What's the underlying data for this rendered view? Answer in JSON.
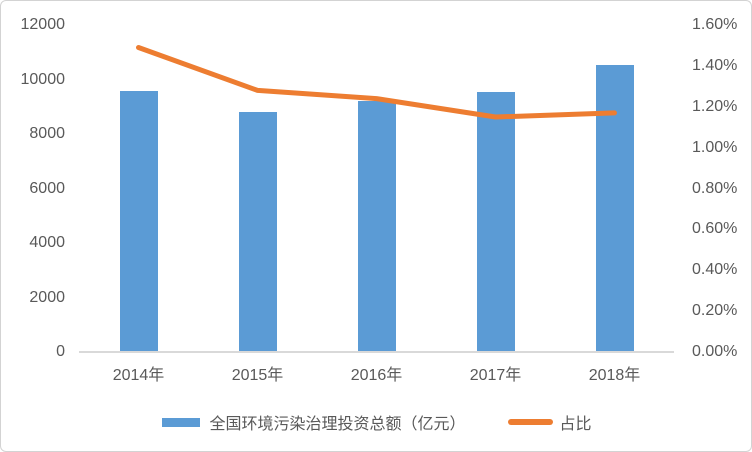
{
  "chart_data": {
    "type": "bar",
    "combo": "bar+line",
    "title": "",
    "categories": [
      "2014年",
      "2015年",
      "2016年",
      "2017年",
      "2018年"
    ],
    "series": [
      {
        "name": "全国环境污染治理投资总额（亿元）",
        "type": "bar",
        "axis": "left",
        "color": "#5b9bd5",
        "values": [
          9575.5,
          8806.3,
          9219.8,
          9539.0,
          10522.9
        ]
      },
      {
        "name": "占比",
        "type": "line",
        "axis": "right",
        "color": "#ed7d31",
        "values": [
          1.49,
          1.28,
          1.24,
          1.15,
          1.17
        ]
      }
    ],
    "left_axis": {
      "min": 0,
      "max": 12000,
      "step": 2000,
      "ticks": [
        "0",
        "2000",
        "4000",
        "6000",
        "8000",
        "10000",
        "12000"
      ]
    },
    "right_axis": {
      "min": 0,
      "max": 1.6,
      "step": 0.2,
      "ticks": [
        "0.00%",
        "0.20%",
        "0.40%",
        "0.60%",
        "0.80%",
        "1.00%",
        "1.20%",
        "1.40%",
        "1.60%"
      ]
    },
    "grid": false,
    "legend": {
      "position": "bottom",
      "items": [
        "全国环境污染治理投资总额（亿元）",
        "占比"
      ]
    }
  },
  "colors": {
    "bar": "#5b9bd5",
    "line": "#ed7d31",
    "axis_line": "#d9d9d9",
    "tick_text": "#595959",
    "border": "#d3d3d3",
    "background": "#ffffff"
  }
}
